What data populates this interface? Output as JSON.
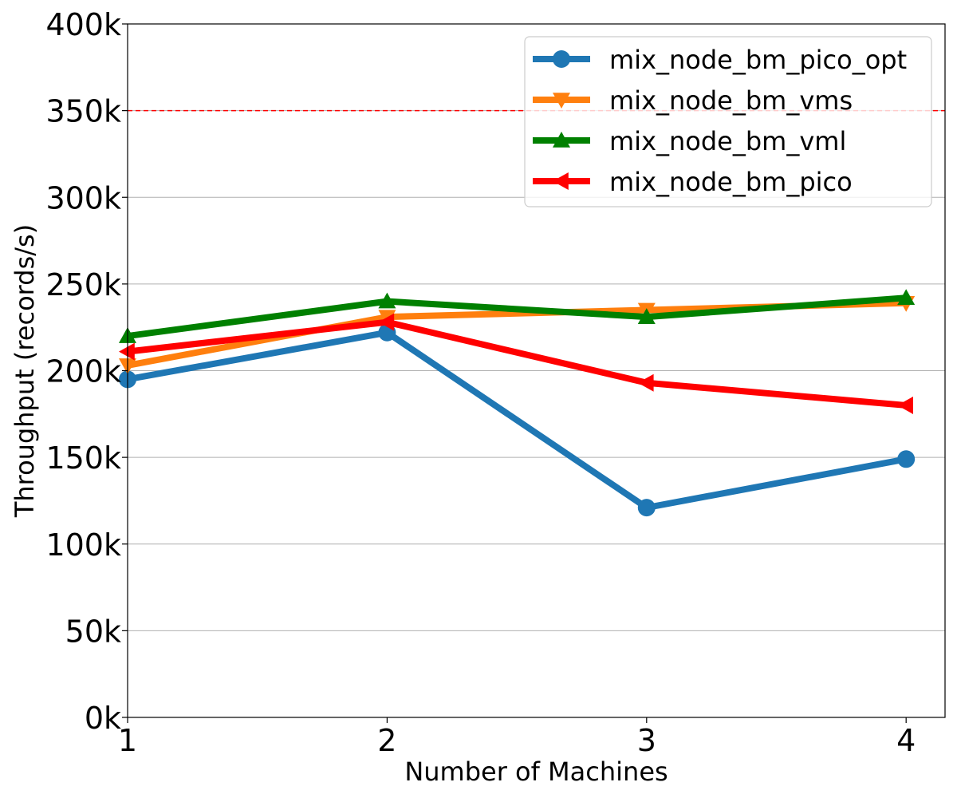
{
  "chart_data": {
    "type": "line",
    "xlabel": "Number of Machines",
    "ylabel": "Throughput (records/s)",
    "x": [
      1,
      2,
      3,
      4
    ],
    "xlim": [
      1,
      4.15
    ],
    "ylim": [
      0,
      400000
    ],
    "xticks": [
      "1",
      "2",
      "3",
      "4"
    ],
    "yticks": [
      "0k",
      "50k",
      "100k",
      "150k",
      "200k",
      "250k",
      "300k",
      "350k",
      "400k"
    ],
    "ytick_values": [
      0,
      50000,
      100000,
      150000,
      200000,
      250000,
      300000,
      350000,
      400000
    ],
    "grid": "horizontal",
    "legend_position": "top-right",
    "reference_line": {
      "y": 350000,
      "color": "#ff0000",
      "style": "dashed"
    },
    "series": [
      {
        "name": "mix_node_bm_pico_opt",
        "color": "#1f77b4",
        "marker": "circle",
        "values": [
          195000,
          222000,
          121000,
          149000
        ]
      },
      {
        "name": "mix_node_bm_vms",
        "color": "#ff7f0e",
        "marker": "triangle-down",
        "values": [
          203000,
          231000,
          235000,
          239000
        ]
      },
      {
        "name": "mix_node_bm_vml",
        "color": "#008000",
        "marker": "triangle-up",
        "values": [
          220000,
          240000,
          231000,
          242000
        ]
      },
      {
        "name": "mix_node_bm_pico",
        "color": "#ff0000",
        "marker": "triangle-left",
        "values": [
          211000,
          228000,
          193000,
          180000
        ]
      }
    ]
  }
}
